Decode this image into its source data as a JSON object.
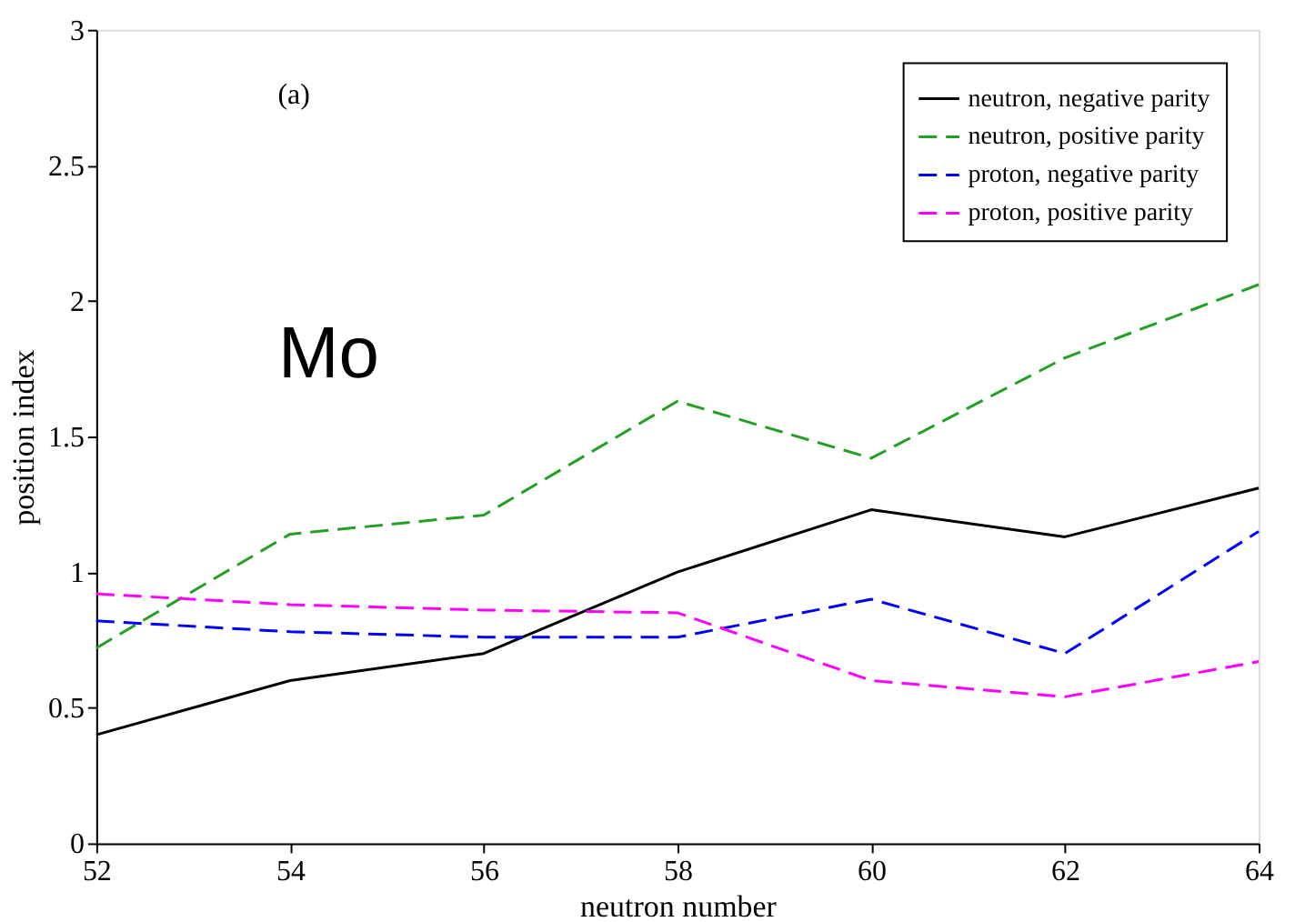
{
  "chart_data": {
    "type": "line",
    "xlabel": "neutron number",
    "ylabel": "position index",
    "x": [
      52,
      54,
      56,
      58,
      60,
      62,
      64
    ],
    "series": [
      {
        "name": "neutron, negative parity",
        "color": "#000000",
        "line_style": "solid",
        "values": [
          0.4,
          0.6,
          0.7,
          1.0,
          1.23,
          1.13,
          1.31
        ]
      },
      {
        "name": "neutron, positive parity",
        "color": "#22a022",
        "line_style": "dashed",
        "values": [
          0.72,
          1.14,
          1.21,
          1.63,
          1.42,
          1.79,
          2.06
        ]
      },
      {
        "name": "proton, negative parity",
        "color": "#0000ff",
        "line_style": "dashed",
        "values": [
          0.82,
          0.78,
          0.76,
          0.76,
          0.9,
          0.7,
          1.15
        ]
      },
      {
        "name": "proton, positive parity",
        "color": "#ff00ff",
        "line_style": "dashed",
        "values": [
          0.92,
          0.88,
          0.86,
          0.85,
          0.6,
          0.54,
          0.67
        ]
      }
    ],
    "xlim": [
      52,
      64
    ],
    "xticks": [
      52,
      54,
      56,
      58,
      60,
      62,
      64
    ],
    "ylim": [
      0,
      3
    ],
    "yticks": [
      0,
      0.5,
      1,
      1.5,
      2,
      2.5,
      3
    ],
    "grid": false,
    "legend": "top right",
    "marker": "none",
    "annotations": [
      "(a)",
      "Mo"
    ]
  }
}
